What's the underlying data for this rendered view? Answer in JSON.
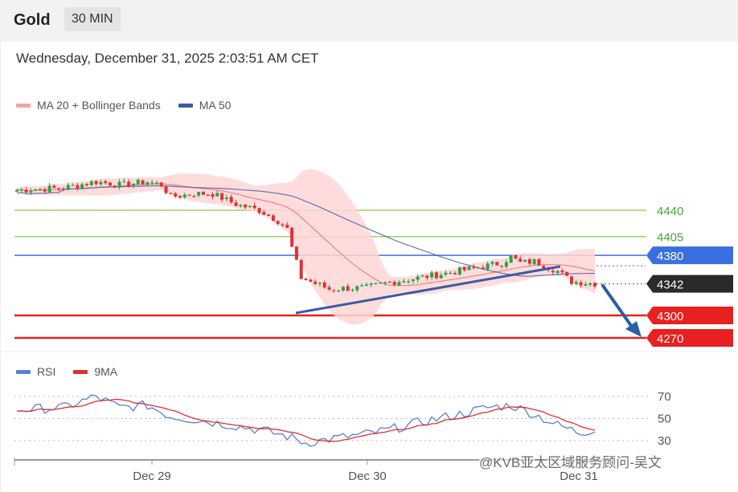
{
  "header": {
    "title": "Gold",
    "timeframe": "30 MIN",
    "timestamp": "Wednesday, December 31, 2025 2:03:51 AM CET"
  },
  "price_legend": {
    "ma20_label": "MA 20 + Bollinger Bands",
    "ma50_label": "MA 50"
  },
  "rsi_legend": {
    "rsi_label": "RSI",
    "ma9_label": "9MA"
  },
  "watermark": "@KVB亚太区域服务顾问-吴文",
  "colors": {
    "bull": "#22a648",
    "bear": "#e03131",
    "ma20": "#f08080",
    "band": "#ffd6d6",
    "ma50": "#3b5ba5",
    "level_green": "#8cc84b",
    "level_blue": "#3a6fe0",
    "level_red": "#e8201f",
    "rsi": "#5b7fd6",
    "rsi_ma": "#e03131",
    "trendline": "#3b5ba5"
  },
  "chart_data": [
    {
      "type": "candlestick",
      "title": "",
      "x_ticks": [
        "Dec 29",
        "Dec 30",
        "Dec 31"
      ],
      "ylim": [
        4250,
        4525
      ],
      "price_tags": [
        {
          "label": "4440",
          "value": 4440,
          "style": "green"
        },
        {
          "label": "4405",
          "value": 4405,
          "style": "green"
        },
        {
          "label": "4380",
          "value": 4380,
          "style": "blue-tag"
        },
        {
          "label": "4342",
          "value": 4342,
          "style": "dark-tag"
        },
        {
          "label": "4300",
          "value": 4300,
          "style": "red-tag"
        },
        {
          "label": "4270",
          "value": 4270,
          "style": "red-tag"
        }
      ],
      "series": [
        {
          "name": "MA 20 + Bollinger Bands",
          "kind": "band-with-ma"
        },
        {
          "name": "MA 50",
          "kind": "line"
        }
      ]
    },
    {
      "type": "line",
      "title": "",
      "ylim": [
        25,
        75
      ],
      "y_ticks": [
        70,
        50,
        30
      ],
      "series": [
        {
          "name": "RSI"
        },
        {
          "name": "9MA"
        }
      ]
    }
  ]
}
